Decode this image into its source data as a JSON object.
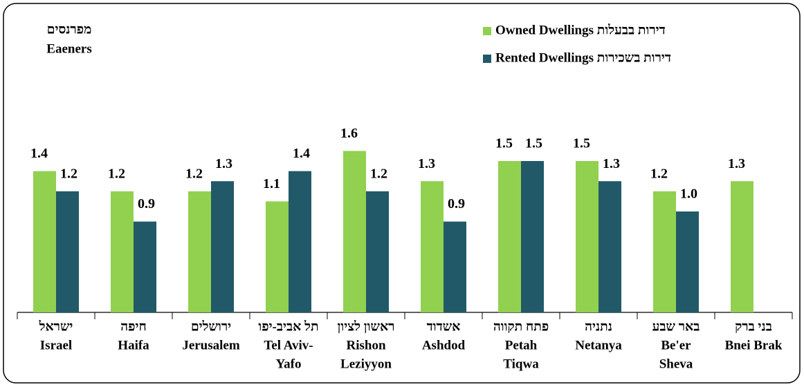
{
  "chart_data": {
    "type": "bar",
    "y_label": [
      "מפרנסים",
      "Eaeners"
    ],
    "categories": [
      [
        "ישראל",
        "Israel"
      ],
      [
        "חיפה",
        "Haifa"
      ],
      [
        "ירושלים",
        "Jerusalem"
      ],
      [
        "תל אביב-יפו",
        "Tel Aviv-",
        "Yafo"
      ],
      [
        "ראשון לציון",
        "Rishon",
        "Leziyyon"
      ],
      [
        "אשדוד",
        "Ashdod"
      ],
      [
        "פתח תקווה",
        "Petah",
        "Tiqwa"
      ],
      [
        "נתניה",
        "Netanya"
      ],
      [
        "באר שבע",
        "Be'er",
        "Sheva"
      ],
      [
        "בני ברק",
        "Bnei Brak"
      ]
    ],
    "series": [
      {
        "name": "Owned Dwellings דירות בבעלות",
        "color": "#92d050",
        "values": [
          1.4,
          1.2,
          1.2,
          1.1,
          1.6,
          1.3,
          1.5,
          1.5,
          1.2,
          1.3
        ],
        "value_labels": [
          "1.4",
          "1.2",
          "1.2",
          "1.1",
          "1.6",
          "1.3",
          "1.5",
          "1.5",
          "1.2",
          "1.3"
        ]
      },
      {
        "name": "Rented Dwellings דירות בשכירות",
        "color": "#215968",
        "values": [
          1.2,
          0.9,
          1.3,
          1.4,
          1.2,
          0.9,
          1.5,
          1.3,
          1.0,
          null
        ],
        "value_labels": [
          "1.2",
          "0.9",
          "1.3",
          "1.4",
          "1.2",
          "0.9",
          "1.5",
          "1.3",
          "1.0",
          null
        ]
      }
    ],
    "ylim": [
      0,
      2.0
    ],
    "legend": "top-right"
  }
}
